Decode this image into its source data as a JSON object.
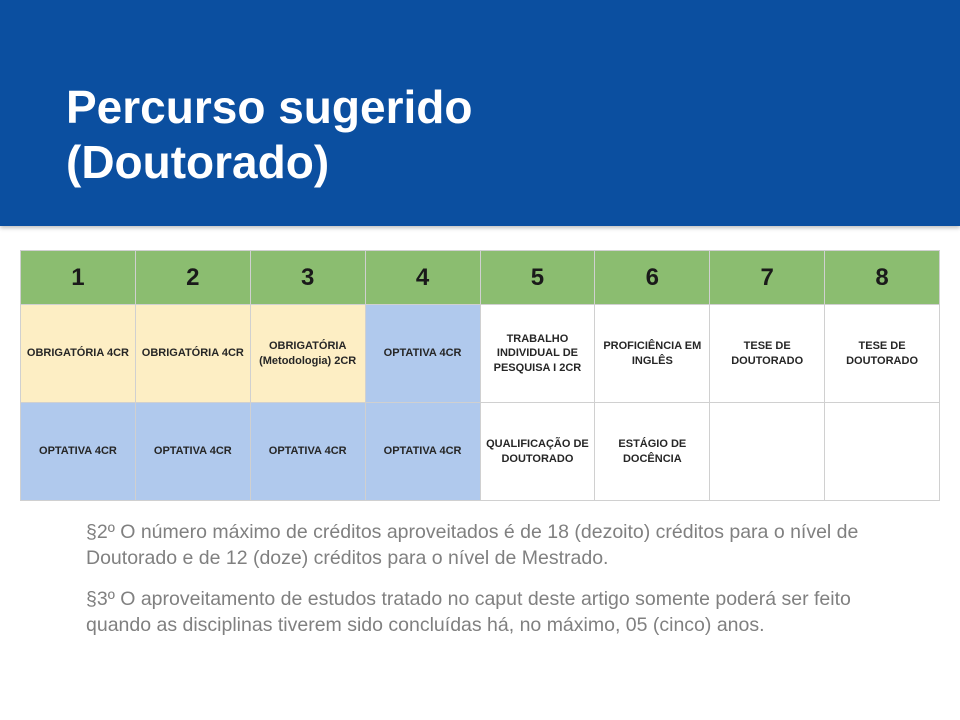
{
  "header": {
    "title_line1": "Percurso sugerido",
    "title_line2": "(Doutorado)"
  },
  "table": {
    "headers": [
      "1",
      "2",
      "3",
      "4",
      "5",
      "6",
      "7",
      "8"
    ],
    "rows": [
      [
        {
          "text": "OBRIGATÓRIA 4CR",
          "cls": "obrig"
        },
        {
          "text": "OBRIGATÓRIA 4CR",
          "cls": "obrig"
        },
        {
          "text": "OBRIGATÓRIA (Metodologia) 2CR",
          "cls": "obrig"
        },
        {
          "text": "OPTATIVA 4CR",
          "cls": "opt"
        },
        {
          "text": "TRABALHO INDIVIDUAL DE PESQUISA I 2CR",
          "cls": "plain"
        },
        {
          "text": "PROFICIÊNCIA EM INGLÊS",
          "cls": "plain"
        },
        {
          "text": "TESE DE DOUTORADO",
          "cls": "plain"
        },
        {
          "text": "TESE DE DOUTORADO",
          "cls": "plain"
        }
      ],
      [
        {
          "text": "OPTATIVA 4CR",
          "cls": "opt"
        },
        {
          "text": "OPTATIVA 4CR",
          "cls": "opt"
        },
        {
          "text": "OPTATIVA 4CR",
          "cls": "opt"
        },
        {
          "text": "OPTATIVA 4CR",
          "cls": "opt"
        },
        {
          "text": "QUALIFICAÇÃO DE DOUTORADO",
          "cls": "plain"
        },
        {
          "text": "ESTÁGIO DE DOCÊNCIA",
          "cls": "plain"
        },
        {
          "text": "",
          "cls": "plain"
        },
        {
          "text": "",
          "cls": "plain"
        }
      ]
    ],
    "colors": {
      "header_bg": "#8bbd70",
      "obrig_bg": "#fdeec4",
      "opt_bg": "#b0c9ed",
      "plain_bg": "#ffffff",
      "border": "#d0d0d0"
    }
  },
  "notes": {
    "p1": "§2º O número máximo de créditos aproveitados é de 18 (dezoito) créditos para o nível de Doutorado e de 12 (doze) créditos para o nível de Mestrado.",
    "p2": "§3º O aproveitamento de estudos tratado no caput deste artigo somente poderá ser feito quando as disciplinas tiverem sido concluídas há, no máximo, 05 (cinco) anos."
  }
}
